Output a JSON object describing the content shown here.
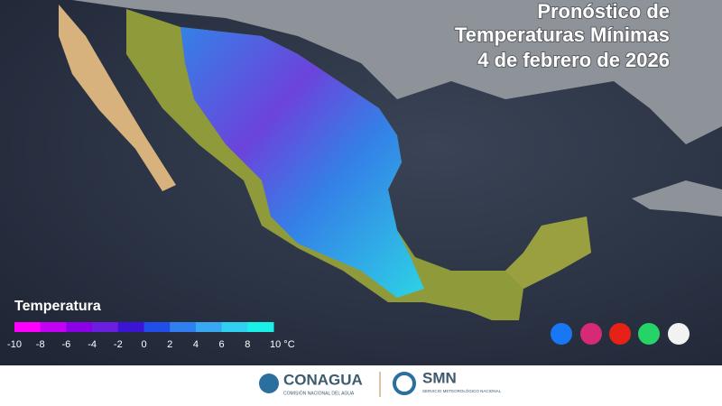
{
  "header": {
    "title_lines": [
      "Pronóstico de",
      "Temperaturas Mínimas",
      "4 de febrero de 2026"
    ]
  },
  "legend": {
    "title": "Temperatura",
    "colors": [
      "#ff00ff",
      "#c400f5",
      "#8c00e8",
      "#6a1fe0",
      "#3b14d6",
      "#1f4fe8",
      "#2f7ff0",
      "#39a8f2",
      "#2fd0f0",
      "#19f0e8"
    ],
    "ticks": [
      -10,
      -8,
      -6,
      -4,
      -2,
      0,
      2,
      4,
      6,
      8,
      {
        "value": 10,
        "label": "10 °C"
      }
    ]
  },
  "footer": {
    "conagua": "CONAGUA",
    "conagua_sub": "COMISIÓN NACIONAL DEL AGUA",
    "smn": "SMN",
    "smn_sub": "SERVICIO METEOROLÓGICO NACIONAL"
  }
}
